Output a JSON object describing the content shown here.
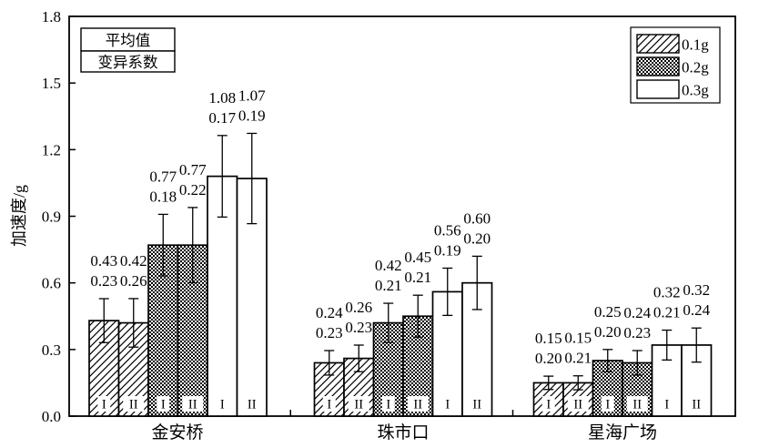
{
  "chart_data": {
    "type": "bar",
    "title": "",
    "ylabel": "加速度/g",
    "ylim": [
      0,
      1.8
    ],
    "yticks": [
      0.0,
      0.3,
      0.6,
      0.9,
      1.2,
      1.5,
      1.8
    ],
    "grid": false,
    "legend_position": "top-right",
    "legend": [
      {
        "label": "0.1g",
        "pattern": "diagonal-hatch"
      },
      {
        "label": "0.2g",
        "pattern": "dense-crosshatch"
      },
      {
        "label": "0.3g",
        "pattern": "plain-white"
      }
    ],
    "annotation_key": {
      "top": "平均值",
      "bottom": "变异系数"
    },
    "label_note": "each bar is annotated with mean (top) and coefficient of variation (bottom); error bars = mean ± mean·CV",
    "groups": [
      {
        "name": "金安桥",
        "bars": [
          {
            "series": "0.1g",
            "case": "I",
            "mean": 0.43,
            "cv": 0.23
          },
          {
            "series": "0.1g",
            "case": "II",
            "mean": 0.42,
            "cv": 0.26
          },
          {
            "series": "0.2g",
            "case": "I",
            "mean": 0.77,
            "cv": 0.18
          },
          {
            "series": "0.2g",
            "case": "II",
            "mean": 0.77,
            "cv": 0.22
          },
          {
            "series": "0.3g",
            "case": "I",
            "mean": 1.08,
            "cv": 0.17
          },
          {
            "series": "0.3g",
            "case": "II",
            "mean": 1.07,
            "cv": 0.19
          }
        ]
      },
      {
        "name": "珠市口",
        "bars": [
          {
            "series": "0.1g",
            "case": "I",
            "mean": 0.24,
            "cv": 0.23
          },
          {
            "series": "0.1g",
            "case": "II",
            "mean": 0.26,
            "cv": 0.23
          },
          {
            "series": "0.2g",
            "case": "I",
            "mean": 0.42,
            "cv": 0.21
          },
          {
            "series": "0.2g",
            "case": "II",
            "mean": 0.45,
            "cv": 0.21
          },
          {
            "series": "0.3g",
            "case": "I",
            "mean": 0.56,
            "cv": 0.19
          },
          {
            "series": "0.3g",
            "case": "II",
            "mean": 0.6,
            "cv": 0.2
          }
        ]
      },
      {
        "name": "星海广场",
        "bars": [
          {
            "series": "0.1g",
            "case": "I",
            "mean": 0.15,
            "cv": 0.2
          },
          {
            "series": "0.1g",
            "case": "II",
            "mean": 0.15,
            "cv": 0.21
          },
          {
            "series": "0.2g",
            "case": "I",
            "mean": 0.25,
            "cv": 0.2
          },
          {
            "series": "0.2g",
            "case": "II",
            "mean": 0.24,
            "cv": 0.23
          },
          {
            "series": "0.3g",
            "case": "I",
            "mean": 0.32,
            "cv": 0.21
          },
          {
            "series": "0.3g",
            "case": "II",
            "mean": 0.32,
            "cv": 0.24
          }
        ]
      }
    ],
    "colors": {
      "ink": "#000000",
      "background": "#ffffff"
    }
  }
}
